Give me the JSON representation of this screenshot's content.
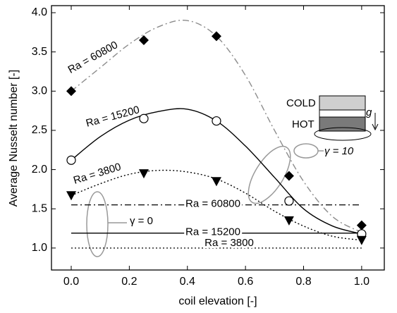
{
  "chart_data": {
    "type": "line",
    "x_label": "coil elevation [-]",
    "y_label": "Average Nusselt number [-]",
    "xlim": [
      -0.068,
      1.078
    ],
    "ylim": [
      0.72,
      4.09
    ],
    "xticks": [
      {
        "value": 0,
        "label": "0.0"
      },
      0.2,
      0.4,
      0.6,
      0.8,
      {
        "value": 1,
        "label": "1.0"
      }
    ],
    "yticks": [
      {
        "value": 1,
        "label": "1.0"
      },
      1.5,
      {
        "value": 2,
        "label": "2.0"
      },
      2.5,
      {
        "value": 3,
        "label": "3.0"
      },
      3.5,
      {
        "value": 4,
        "label": "4.0"
      }
    ],
    "series": [
      {
        "name": "Ra = 60800",
        "marker": "diamond",
        "color": "#8c8c8c",
        "line_style": "dashdot",
        "x": [
          0,
          0.25,
          0.5,
          0.75,
          1
        ],
        "values": [
          3.0,
          3.65,
          3.7,
          1.92,
          1.29
        ],
        "fit": {
          "x": [
            0,
            0.1,
            0.2,
            0.3,
            0.4,
            0.5,
            0.6,
            0.7,
            0.8,
            0.9,
            1
          ],
          "values": [
            3.0,
            3.3,
            3.6,
            3.82,
            3.9,
            3.7,
            3.2,
            2.5,
            1.85,
            1.4,
            1.2
          ]
        }
      },
      {
        "name": "Ra = 15200",
        "marker": "circle",
        "color": "#000000",
        "line_style": "solid",
        "x": [
          0,
          0.25,
          0.5,
          0.75,
          1
        ],
        "values": [
          2.12,
          2.65,
          2.62,
          1.6,
          1.18
        ],
        "fit": {
          "x": [
            0,
            0.1,
            0.2,
            0.3,
            0.4,
            0.5,
            0.6,
            0.7,
            0.8,
            0.9,
            1
          ],
          "values": [
            2.12,
            2.42,
            2.63,
            2.74,
            2.77,
            2.62,
            2.3,
            1.9,
            1.5,
            1.28,
            1.18
          ]
        }
      },
      {
        "name": "Ra = 3800",
        "marker": "triangle-down",
        "color": "#000000",
        "line_style": "dotted",
        "x": [
          0,
          0.25,
          0.5,
          0.75,
          1
        ],
        "values": [
          1.67,
          1.95,
          1.85,
          1.35,
          1.1
        ],
        "fit": {
          "x": [
            0,
            0.1,
            0.2,
            0.3,
            0.4,
            0.5,
            0.6,
            0.7,
            0.8,
            0.9,
            1
          ],
          "values": [
            1.67,
            1.82,
            1.94,
            1.99,
            1.97,
            1.88,
            1.7,
            1.47,
            1.28,
            1.15,
            1.1
          ]
        }
      }
    ],
    "baselines": [
      {
        "name": "Ra = 60800",
        "value": 1.55,
        "line_style": "dashdot"
      },
      {
        "name": "Ra = 15200",
        "value": 1.19,
        "line_style": "solid"
      },
      {
        "name": "Ra = 3800",
        "value": 1.0,
        "line_style": "dotted"
      }
    ],
    "annotations": {
      "gamma_10": "γ = 10",
      "gamma_0": "γ = 0",
      "cold": "COLD",
      "hot": "HOT",
      "gravity": "g"
    }
  }
}
